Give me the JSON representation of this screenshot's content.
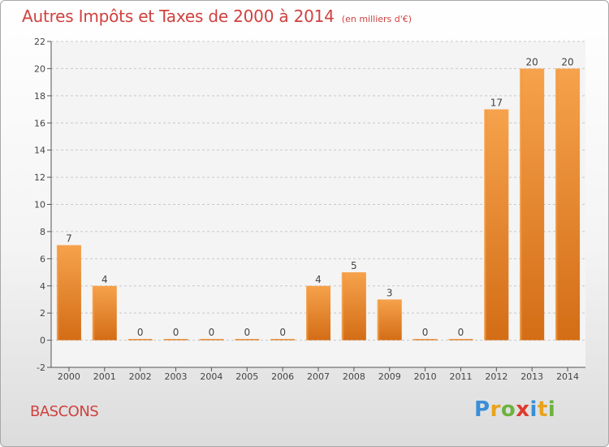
{
  "title": "Autres Impôts et Taxes de 2000 à 2014",
  "unit_note": "(en milliers d'€)",
  "place_name": "BASCONS",
  "brand": [
    "P",
    "r",
    "o",
    "x",
    "i",
    "t",
    "i"
  ],
  "chart_data": {
    "type": "bar",
    "categories": [
      "2000",
      "2001",
      "2002",
      "2003",
      "2004",
      "2005",
      "2006",
      "2007",
      "2008",
      "2009",
      "2010",
      "2011",
      "2012",
      "2013",
      "2014"
    ],
    "values": [
      7,
      4,
      0,
      0,
      0,
      0,
      0,
      4,
      5,
      3,
      0,
      0,
      17,
      20,
      20
    ],
    "data_labels": [
      "7",
      "4",
      "0",
      "0",
      "0",
      "0",
      "0",
      "4",
      "5",
      "3",
      "0",
      "0",
      "17",
      "20",
      "20"
    ],
    "ylim": [
      -2,
      22
    ],
    "yticks": [
      -2,
      0,
      2,
      4,
      6,
      8,
      10,
      12,
      14,
      16,
      18,
      20,
      22
    ],
    "grid": true,
    "bar_color": "#f0912f",
    "title_color": "#d0413f"
  }
}
